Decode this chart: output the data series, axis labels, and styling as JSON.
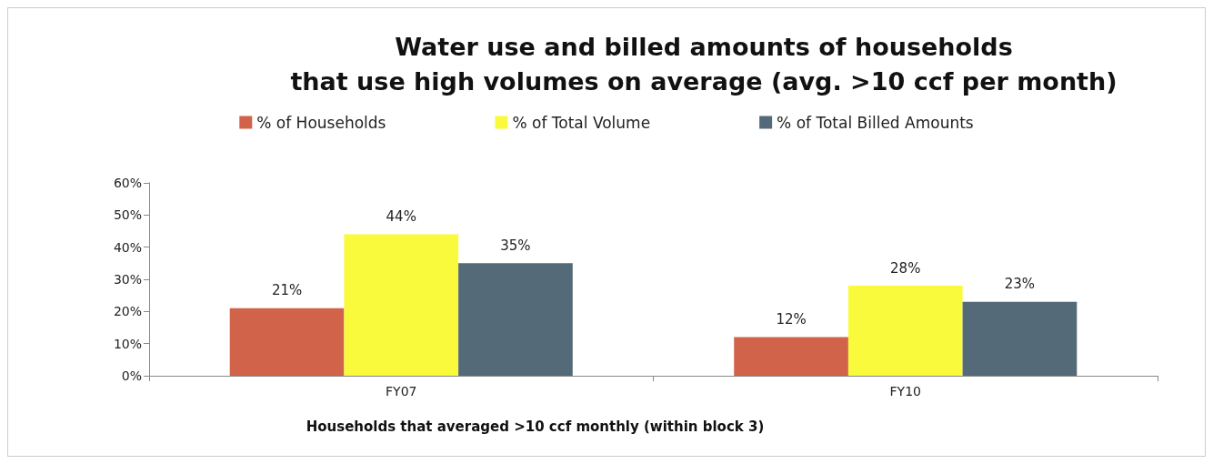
{
  "chart_data": {
    "type": "bar",
    "title": "Water use and billed amounts of households\nthat use high volumes on average (avg. >10 ccf per month)",
    "xlabel": "Households that averaged >10 ccf monthly (within block 3)",
    "categories": [
      "FY07",
      "FY10"
    ],
    "series": [
      {
        "name": "% of Households",
        "color": "#d0634a",
        "values": [
          21,
          12
        ],
        "value_labels": [
          "21%",
          "12%"
        ]
      },
      {
        "name": "% of Total Volume",
        "color": "#fafa3c",
        "values": [
          44,
          28
        ],
        "value_labels": [
          "44%",
          "28%"
        ]
      },
      {
        "name": "% of Total Billed Amounts",
        "color": "#546a78",
        "values": [
          35,
          23
        ],
        "value_labels": [
          "35%",
          "23%"
        ]
      }
    ],
    "ylim": [
      0,
      60
    ],
    "yticks": [
      {
        "value": 0,
        "label": "0%"
      },
      {
        "value": 10,
        "label": "10%"
      },
      {
        "value": 20,
        "label": "20%"
      },
      {
        "value": 30,
        "label": "30%"
      },
      {
        "value": 40,
        "label": "40%"
      },
      {
        "value": 50,
        "label": "50%"
      },
      {
        "value": 60,
        "label": "60%"
      }
    ],
    "grid": false,
    "legend": "top"
  }
}
